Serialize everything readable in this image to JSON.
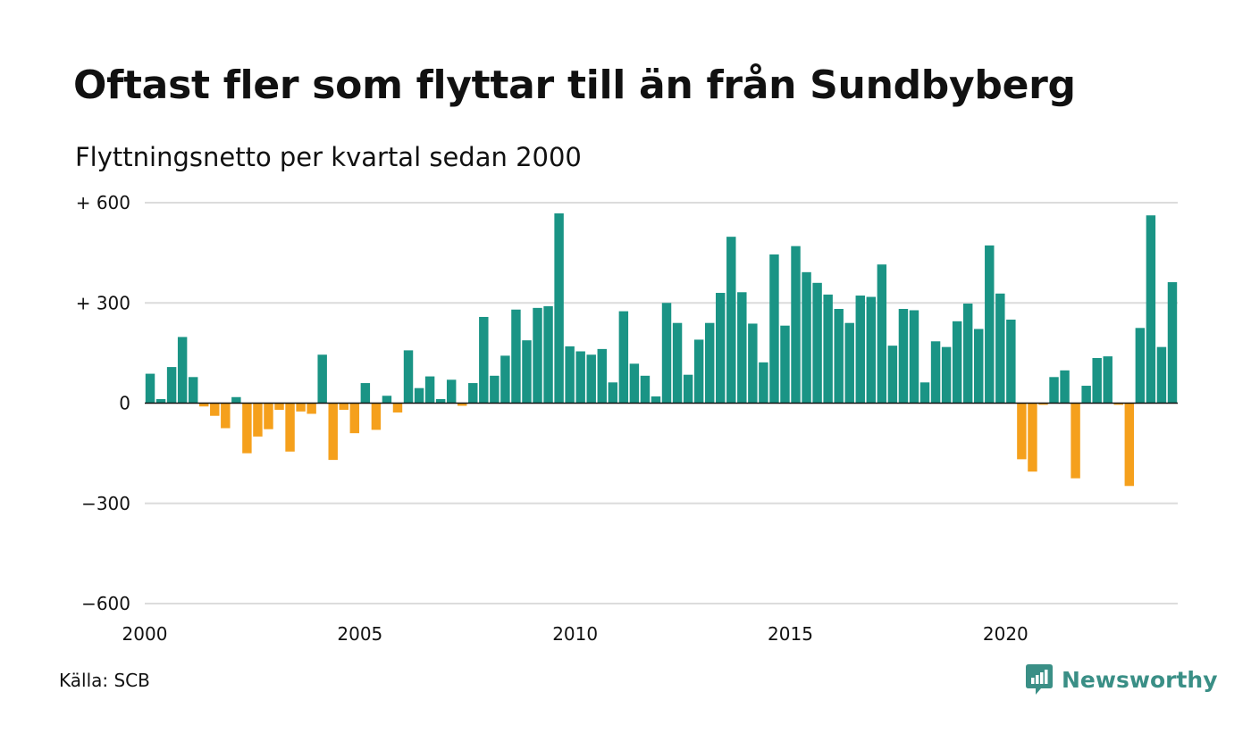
{
  "title": "Oftast fler som flyttar till än från Sundbyberg",
  "subtitle": "Flyttningsnetto per kvartal sedan 2000",
  "source": "Källa: SCB",
  "brand": {
    "name": "Newsworthy",
    "icon": "newsworthy-logo-icon",
    "color": "#3a8f86"
  },
  "colors": {
    "positive": "#1a9485",
    "negative": "#f5a01c",
    "grid": "#dcdcdc",
    "zero_line": "#111111"
  },
  "chart_data": {
    "type": "bar",
    "grid": true,
    "ylim": [
      -600,
      600
    ],
    "x_start": 2000,
    "x_step": 0.25,
    "x_ticks": [
      2000,
      2005,
      2010,
      2015,
      2020
    ],
    "x_tick_labels": [
      "2000",
      "2005",
      "2010",
      "2015",
      "2020"
    ],
    "y_ticks": [
      600,
      300,
      0,
      -300,
      -600
    ],
    "y_tick_labels": [
      "+ 600",
      "+ 300",
      "0",
      "−300",
      "−600"
    ],
    "values": [
      88,
      12,
      108,
      198,
      78,
      -10,
      -38,
      -75,
      18,
      -150,
      -100,
      -78,
      -20,
      -145,
      -25,
      -32,
      145,
      -170,
      -20,
      -90,
      60,
      -80,
      22,
      -28,
      158,
      45,
      80,
      12,
      70,
      -8,
      60,
      258,
      82,
      142,
      280,
      188,
      285,
      290,
      568,
      170,
      155,
      145,
      162,
      62,
      275,
      118,
      82,
      20,
      300,
      240,
      85,
      190,
      240,
      330,
      498,
      332,
      238,
      122,
      445,
      232,
      470,
      392,
      360,
      325,
      282,
      240,
      322,
      318,
      415,
      172,
      282,
      278,
      62,
      185,
      168,
      245,
      298,
      222,
      472,
      328,
      250,
      -168,
      -205,
      -5,
      78,
      98,
      -225,
      52,
      135,
      140,
      -5,
      -248,
      225,
      562,
      168,
      362
    ]
  }
}
